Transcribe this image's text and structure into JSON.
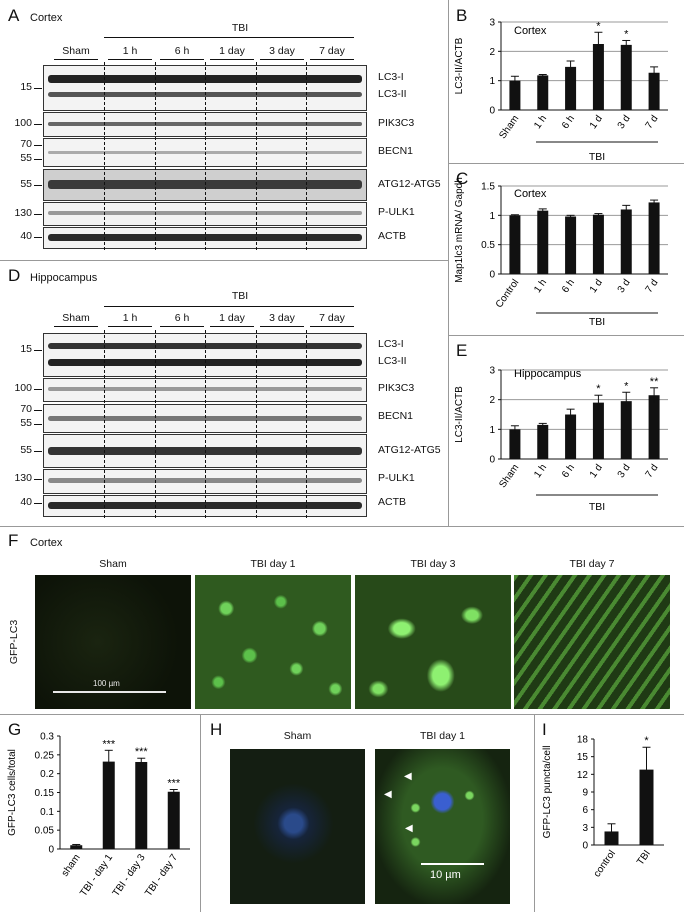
{
  "panelA": {
    "letter": "A",
    "region": "Cortex",
    "tbi_label": "TBI",
    "groups": [
      "Sham",
      "1 h",
      "6 h",
      "1 day",
      "3 day",
      "7 day"
    ],
    "rows": [
      {
        "mw": "15",
        "label": "LC3-I",
        "label2": "LC3-II"
      },
      {
        "mw": "100",
        "label": "PIK3C3"
      },
      {
        "mw": "70",
        "mw2": "55",
        "label": "BECN1"
      },
      {
        "mw": "55",
        "label": "ATG12-ATG5"
      },
      {
        "mw": "130",
        "label": "P-ULK1"
      },
      {
        "mw": "40",
        "label": "ACTB"
      }
    ]
  },
  "panelD": {
    "letter": "D",
    "region": "Hippocampus",
    "tbi_label": "TBI",
    "groups": [
      "Sham",
      "1 h",
      "6 h",
      "1 day",
      "3 day",
      "7 day"
    ],
    "rows": [
      {
        "mw": "15",
        "label": "LC3-I",
        "label2": "LC3-II"
      },
      {
        "mw": "100",
        "label": "PIK3C3"
      },
      {
        "mw": "70",
        "mw2": "55",
        "label": "BECN1"
      },
      {
        "mw": "55",
        "label": "ATG12-ATG5"
      },
      {
        "mw": "130",
        "label": "P-ULK1"
      },
      {
        "mw": "40",
        "label": "ACTB"
      }
    ]
  },
  "panelF": {
    "letter": "F",
    "region": "Cortex",
    "ylabel": "GFP-LC3",
    "images": [
      "Sham",
      "TBI day 1",
      "TBI day 3",
      "TBI day 7"
    ],
    "scale": "100 µm"
  },
  "panelH": {
    "letter": "H",
    "images": [
      "Sham",
      "TBI day 1"
    ],
    "scale": "10 µm"
  },
  "chart_data": [
    {
      "id": "B",
      "letter": "B",
      "type": "bar",
      "inner_title": "Cortex",
      "ylabel": "LC3-II/ACTB",
      "group_label": "TBI",
      "categories": [
        "Sham",
        "1 h",
        "6 h",
        "1 d",
        "3 d",
        "7 d"
      ],
      "values": [
        1.0,
        1.18,
        1.47,
        2.25,
        2.22,
        1.27
      ],
      "errors": [
        0.15,
        0.03,
        0.2,
        0.4,
        0.15,
        0.2
      ],
      "stars": [
        "",
        "",
        "",
        "*",
        "*",
        ""
      ],
      "ylim": [
        0,
        3
      ],
      "yticks": [
        0,
        1,
        2,
        3
      ],
      "grid": true
    },
    {
      "id": "C",
      "letter": "C",
      "type": "bar",
      "inner_title": "Cortex",
      "ylabel": "Map1lc3 mRNA/ Gapdh",
      "group_label": "TBI",
      "categories": [
        "Control",
        "1 h",
        "6 h",
        "1 d",
        "3 d",
        "7 d"
      ],
      "values": [
        1.0,
        1.08,
        0.98,
        1.01,
        1.1,
        1.22
      ],
      "errors": [
        0.01,
        0.03,
        0.02,
        0.02,
        0.07,
        0.04
      ],
      "stars": [
        "",
        "",
        "",
        "",
        "",
        ""
      ],
      "ylim": [
        0,
        1.5
      ],
      "yticks": [
        0,
        0.5,
        1,
        1.5
      ],
      "grid": true
    },
    {
      "id": "E",
      "letter": "E",
      "type": "bar",
      "inner_title": "Hippocampus",
      "ylabel": "LC3-II/ACTB",
      "group_label": "TBI",
      "categories": [
        "Sham",
        "1 h",
        "6 h",
        "1 d",
        "3 d",
        "7 d"
      ],
      "values": [
        1.0,
        1.15,
        1.5,
        1.9,
        1.95,
        2.15
      ],
      "errors": [
        0.12,
        0.05,
        0.18,
        0.25,
        0.3,
        0.25
      ],
      "stars": [
        "",
        "",
        "",
        "*",
        "*",
        "**"
      ],
      "ylim": [
        0,
        3
      ],
      "yticks": [
        0,
        1,
        2,
        3
      ],
      "grid": true
    },
    {
      "id": "G",
      "letter": "G",
      "type": "bar",
      "inner_title": "",
      "ylabel": "GFP-LC3 cells/total",
      "group_label": "",
      "categories": [
        "sham",
        "TBI - day 1",
        "TBI - day 3",
        "TBI - day 7"
      ],
      "values": [
        0.01,
        0.232,
        0.231,
        0.152
      ],
      "errors": [
        0.002,
        0.03,
        0.01,
        0.006
      ],
      "stars": [
        "",
        "***",
        "***",
        "***"
      ],
      "ylim": [
        0,
        0.3
      ],
      "yticks": [
        0,
        0.05,
        0.1,
        0.15,
        0.2,
        0.25,
        0.3
      ],
      "grid": false
    },
    {
      "id": "I",
      "letter": "I",
      "type": "bar",
      "inner_title": "",
      "ylabel": "GFP-LC3 puncta/cell",
      "group_label": "",
      "categories": [
        "control",
        "TBI"
      ],
      "values": [
        2.3,
        12.8
      ],
      "errors": [
        1.3,
        3.8
      ],
      "stars": [
        "",
        "*"
      ],
      "ylim": [
        0,
        18
      ],
      "yticks": [
        0,
        3,
        6,
        9,
        12,
        15,
        18
      ],
      "grid": false
    }
  ]
}
